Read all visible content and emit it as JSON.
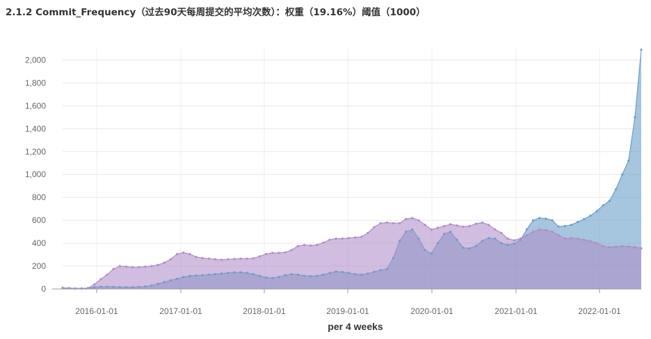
{
  "page": {
    "title": "2.1.2 Commit_Frequency（过去90天每周提交的平均次数）：权重（19.16%）阈值（1000）"
  },
  "chart_data": {
    "type": "area",
    "xlabel": "per 4 weeks",
    "ylim": [
      0,
      2100
    ],
    "y_ticks": [
      "0",
      "200",
      "400",
      "600",
      "800",
      "1,000",
      "1,200",
      "1,400",
      "1,600",
      "1,800",
      "2,000"
    ],
    "x_ticks": [
      "2016-01-01",
      "2017-01-01",
      "2018-01-01",
      "2019-01-01",
      "2020-01-01",
      "2021-01-01",
      "2022-01-01"
    ],
    "grid": true,
    "colors": {
      "series_a": "#6a9ec9",
      "series_b": "#ae8dc8"
    },
    "series": [
      {
        "values": [
          10,
          8,
          5,
          5,
          8,
          15,
          20,
          20,
          18,
          17,
          15,
          15,
          18,
          22,
          30,
          45,
          60,
          75,
          90,
          105,
          115,
          118,
          120,
          125,
          130,
          135,
          140,
          145,
          145,
          140,
          130,
          115,
          100,
          95,
          105,
          120,
          130,
          125,
          115,
          112,
          115,
          125,
          140,
          152,
          148,
          140,
          130,
          125,
          135,
          150,
          165,
          175,
          270,
          420,
          500,
          520,
          440,
          340,
          310,
          400,
          480,
          500,
          430,
          360,
          355,
          375,
          420,
          445,
          440,
          400,
          385,
          395,
          430,
          520,
          600,
          620,
          615,
          600,
          545,
          550,
          560,
          585,
          610,
          640,
          680,
          730,
          770,
          870,
          1000,
          1120,
          1500,
          2090
        ]
      },
      {
        "values": [
          10,
          8,
          5,
          5,
          8,
          40,
          85,
          125,
          175,
          200,
          195,
          190,
          190,
          195,
          200,
          210,
          230,
          260,
          305,
          318,
          305,
          280,
          270,
          265,
          260,
          255,
          260,
          262,
          265,
          265,
          268,
          285,
          305,
          315,
          315,
          320,
          340,
          375,
          385,
          380,
          385,
          405,
          430,
          440,
          440,
          445,
          450,
          455,
          490,
          540,
          575,
          580,
          575,
          575,
          612,
          620,
          600,
          560,
          520,
          535,
          550,
          565,
          555,
          545,
          550,
          570,
          580,
          560,
          520,
          490,
          440,
          425,
          440,
          470,
          500,
          520,
          515,
          500,
          470,
          440,
          445,
          440,
          430,
          420,
          400,
          375,
          365,
          370,
          375,
          370,
          365,
          355
        ]
      }
    ]
  }
}
